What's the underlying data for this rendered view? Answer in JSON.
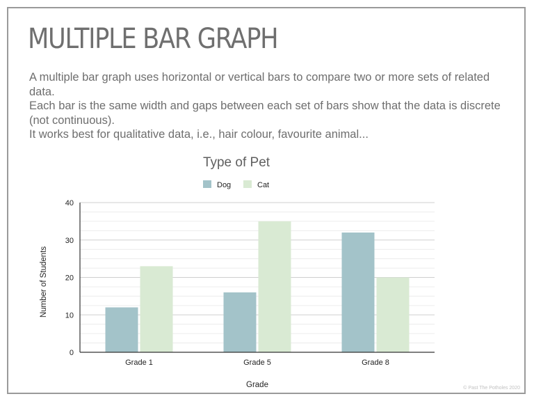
{
  "slide": {
    "title": "MULTIPLE BAR GRAPH",
    "description": [
      "A multiple bar graph uses horizontal or vertical bars to compare two or more sets of related data.",
      "Each bar is the same width and gaps between each set of bars show that the data is discrete (not continuous).",
      "It works best for qualitative data, i.e., hair colour, favourite animal..."
    ],
    "copyright": "© Past The Potholes 2020"
  },
  "chart_data": {
    "type": "bar",
    "title": "Type of Pet",
    "xlabel": "Grade",
    "ylabel": "Number of Students",
    "categories": [
      "Grade 1",
      "Grade 5",
      "Grade 8"
    ],
    "series": [
      {
        "name": "Dog",
        "values": [
          12,
          16,
          32
        ],
        "color": "#a3c3c9"
      },
      {
        "name": "Cat",
        "values": [
          23,
          35,
          20
        ],
        "color": "#d9ead3"
      }
    ],
    "ylim": [
      0,
      40
    ],
    "yticks": [
      0,
      10,
      20,
      30,
      40
    ],
    "minor_grid_step": 2.5,
    "grid": true,
    "legend": "top-center"
  }
}
